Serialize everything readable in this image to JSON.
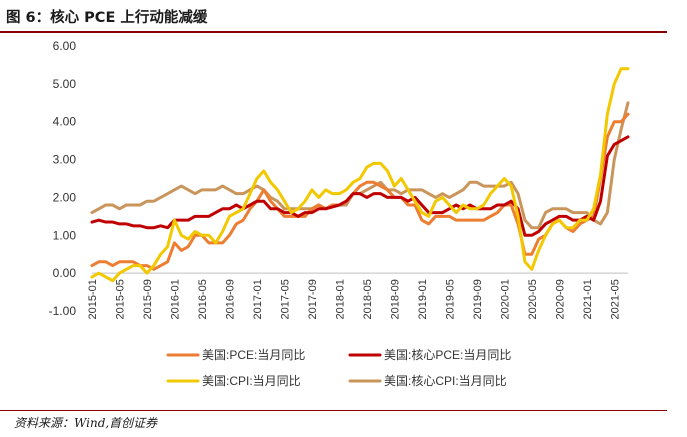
{
  "header": {
    "title": "图 6：核心 PCE 上行动能减缓"
  },
  "footer": {
    "source": "资料来源：Wind,首创证券"
  },
  "chart_data": {
    "type": "line",
    "title": "图 6：核心 PCE 上行动能减缓",
    "xlabel": "",
    "ylabel": "",
    "ylim": [
      -1,
      6
    ],
    "yticks": [
      "6.00",
      "5.00",
      "4.00",
      "3.00",
      "2.00",
      "1.00",
      "0.00",
      "-1.00"
    ],
    "grid": false,
    "legend_position": "bottom",
    "x_start": "2015-01",
    "xtick_labels": [
      "2015-01",
      "2015-05",
      "2015-09",
      "2016-01",
      "2016-05",
      "2016-09",
      "2017-01",
      "2017-05",
      "2017-09",
      "2018-01",
      "2018-05",
      "2018-09",
      "2019-01",
      "2019-05",
      "2019-09",
      "2020-01",
      "2020-05",
      "2020-09",
      "2021-01",
      "2021-05"
    ],
    "series": [
      {
        "name": "美国:PCE:当月同比",
        "color": "#ed7d31",
        "values": [
          0.2,
          0.3,
          0.3,
          0.2,
          0.3,
          0.3,
          0.3,
          0.2,
          0.2,
          0.1,
          0.2,
          0.3,
          0.8,
          0.6,
          0.7,
          1.0,
          1.0,
          0.8,
          0.8,
          0.8,
          1.0,
          1.3,
          1.4,
          1.7,
          1.9,
          2.2,
          1.9,
          1.7,
          1.5,
          1.5,
          1.5,
          1.5,
          1.7,
          1.8,
          1.7,
          1.8,
          1.8,
          1.9,
          2.1,
          2.3,
          2.4,
          2.4,
          2.3,
          2.2,
          2.0,
          2.0,
          1.8,
          1.8,
          1.4,
          1.3,
          1.5,
          1.5,
          1.5,
          1.4,
          1.4,
          1.4,
          1.4,
          1.4,
          1.5,
          1.6,
          1.8,
          1.8,
          1.3,
          0.5,
          0.5,
          0.9,
          1.0,
          1.3,
          1.4,
          1.2,
          1.1,
          1.3,
          1.4,
          1.5,
          2.5,
          3.6,
          4.0,
          4.0,
          4.2
        ]
      },
      {
        "name": "美国:核心PCE:当月同比",
        "color": "#c00000",
        "values": [
          1.35,
          1.4,
          1.35,
          1.35,
          1.3,
          1.3,
          1.25,
          1.25,
          1.2,
          1.2,
          1.25,
          1.2,
          1.4,
          1.4,
          1.4,
          1.5,
          1.5,
          1.5,
          1.6,
          1.7,
          1.7,
          1.8,
          1.7,
          1.8,
          1.9,
          1.9,
          1.7,
          1.7,
          1.6,
          1.6,
          1.5,
          1.6,
          1.6,
          1.7,
          1.7,
          1.75,
          1.8,
          1.9,
          2.1,
          2.1,
          2.0,
          2.1,
          2.1,
          2.0,
          2.0,
          2.0,
          1.9,
          2.0,
          1.8,
          1.6,
          1.6,
          1.6,
          1.7,
          1.8,
          1.7,
          1.8,
          1.7,
          1.7,
          1.7,
          1.8,
          1.8,
          1.9,
          1.7,
          1.0,
          1.0,
          1.1,
          1.3,
          1.4,
          1.5,
          1.5,
          1.4,
          1.4,
          1.5,
          1.4,
          1.9,
          3.1,
          3.4,
          3.5,
          3.6
        ]
      },
      {
        "name": "美国:CPI:当月同比",
        "color": "#f2c800",
        "values": [
          -0.1,
          0.0,
          -0.1,
          -0.2,
          0.0,
          0.1,
          0.2,
          0.2,
          0.0,
          0.2,
          0.5,
          0.7,
          1.4,
          1.0,
          0.9,
          1.1,
          1.0,
          1.0,
          0.8,
          1.1,
          1.5,
          1.6,
          1.7,
          2.1,
          2.5,
          2.7,
          2.4,
          2.2,
          1.9,
          1.6,
          1.7,
          1.9,
          2.2,
          2.0,
          2.2,
          2.1,
          2.1,
          2.2,
          2.4,
          2.5,
          2.8,
          2.9,
          2.9,
          2.7,
          2.3,
          2.5,
          2.2,
          1.9,
          1.6,
          1.5,
          1.9,
          2.0,
          1.8,
          1.6,
          1.8,
          1.7,
          1.7,
          1.8,
          2.1,
          2.3,
          2.5,
          2.3,
          1.5,
          0.3,
          0.1,
          0.6,
          1.0,
          1.3,
          1.4,
          1.2,
          1.2,
          1.4,
          1.4,
          1.7,
          2.6,
          4.2,
          5.0,
          5.4,
          5.4
        ]
      },
      {
        "name": "美国:核心CPI:当月同比",
        "color": "#c9955b",
        "values": [
          1.6,
          1.7,
          1.8,
          1.8,
          1.7,
          1.8,
          1.8,
          1.8,
          1.9,
          1.9,
          2.0,
          2.1,
          2.2,
          2.3,
          2.2,
          2.1,
          2.2,
          2.2,
          2.2,
          2.3,
          2.2,
          2.1,
          2.1,
          2.2,
          2.3,
          2.2,
          2.0,
          1.9,
          1.7,
          1.7,
          1.7,
          1.7,
          1.7,
          1.8,
          1.7,
          1.8,
          1.8,
          1.8,
          2.1,
          2.1,
          2.2,
          2.3,
          2.4,
          2.2,
          2.2,
          2.1,
          2.2,
          2.2,
          2.2,
          2.1,
          2.0,
          2.1,
          2.0,
          2.1,
          2.2,
          2.4,
          2.4,
          2.3,
          2.3,
          2.3,
          2.3,
          2.4,
          2.1,
          1.4,
          1.2,
          1.2,
          1.6,
          1.7,
          1.7,
          1.7,
          1.6,
          1.6,
          1.6,
          1.4,
          1.3,
          1.6,
          3.0,
          3.8,
          4.5
        ]
      }
    ]
  }
}
